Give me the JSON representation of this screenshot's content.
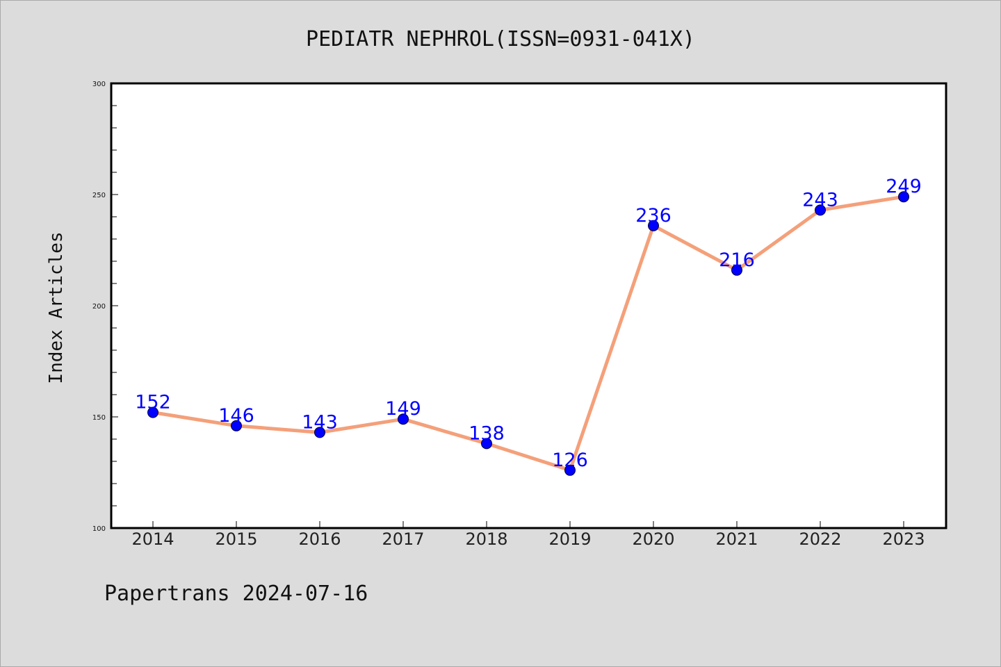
{
  "chart_data": {
    "type": "line",
    "title": "PEDIATR NEPHROL(ISSN=0931-041X)",
    "xlabel": "",
    "ylabel": "Index Articles",
    "categories": [
      "2014",
      "2015",
      "2016",
      "2017",
      "2018",
      "2019",
      "2020",
      "2021",
      "2022",
      "2023"
    ],
    "series": [
      {
        "values": [
          152,
          146,
          143,
          149,
          138,
          126,
          236,
          216,
          243,
          249
        ],
        "line_color": "#f4a07a",
        "marker_color": "#0000ff"
      }
    ],
    "ylim": [
      100,
      300
    ],
    "yticks": [
      100,
      150,
      200,
      250,
      300
    ],
    "ytick_labels": [
      "100",
      "150",
      "200",
      "250",
      "300"
    ],
    "data_labels": true,
    "grid": false,
    "legend": "none"
  },
  "footer": {
    "text": "Papertrans 2024-07-16"
  },
  "colors": {
    "background": "#dcdcdc",
    "plot_background": "#ffffff",
    "line": "#f4a07a",
    "marker": "#0000ff",
    "data_label": "#0000ff"
  }
}
